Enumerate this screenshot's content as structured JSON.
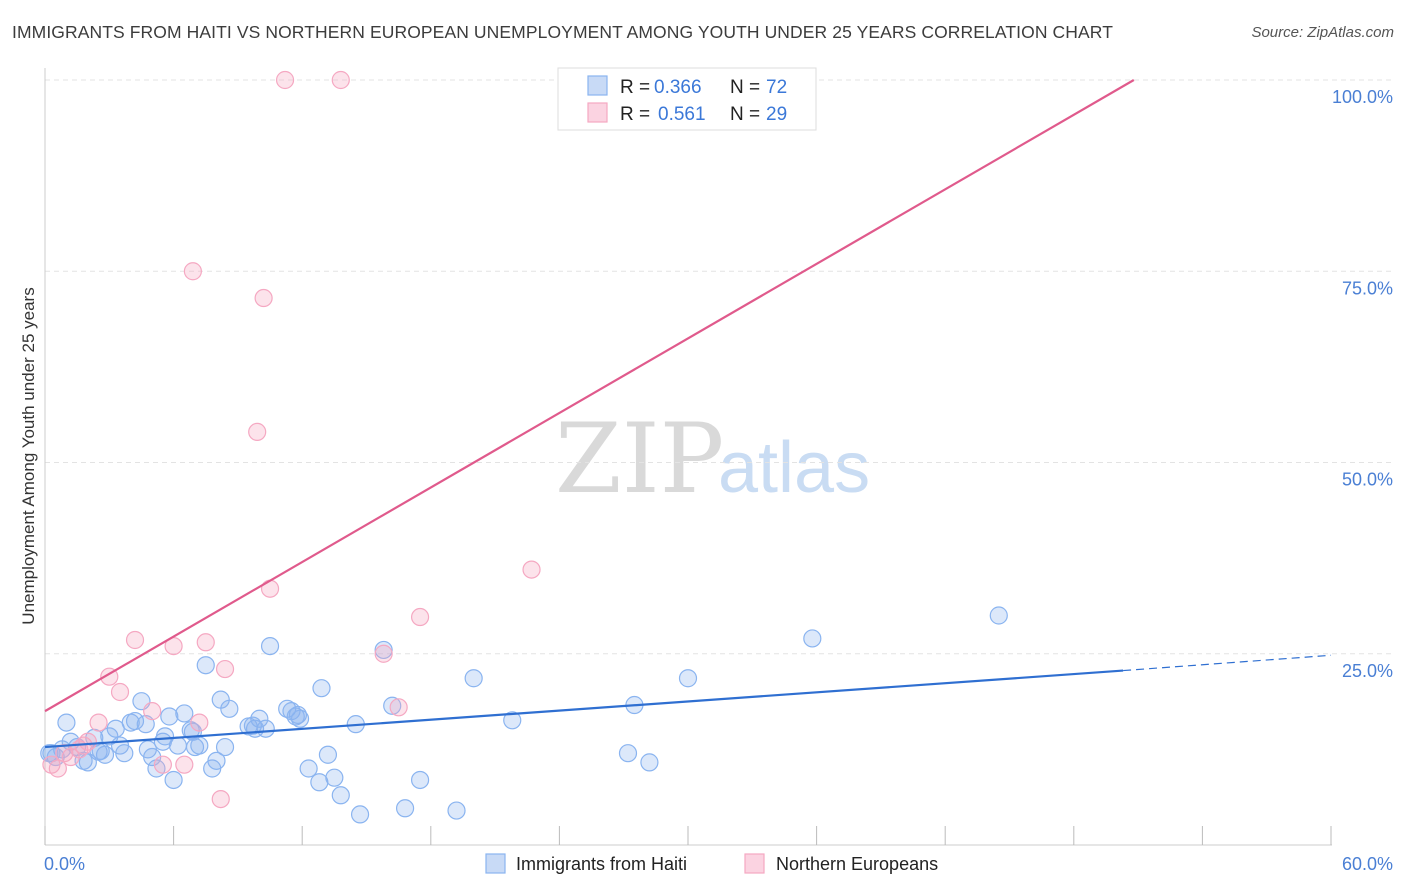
{
  "title": "IMMIGRANTS FROM HAITI VS NORTHERN EUROPEAN UNEMPLOYMENT AMONG YOUTH UNDER 25 YEARS CORRELATION CHART",
  "source": "Source: ZipAtlas.com",
  "watermark": {
    "zip": "ZIP",
    "atlas": "atlas"
  },
  "legend": {
    "r_label": "R =",
    "n_label": "N =",
    "series": [
      {
        "r": "0.366",
        "n": "72"
      },
      {
        "r": "0.561",
        "n": "29"
      }
    ]
  },
  "chart_data": {
    "type": "scatter",
    "title": "IMMIGRANTS FROM HAITI VS NORTHERN EUROPEAN UNEMPLOYMENT AMONG YOUTH UNDER 25 YEARS CORRELATION CHART",
    "xlabel": "",
    "ylabel": "Unemployment Among Youth under 25 years",
    "xlim": [
      0,
      60
    ],
    "ylim": [
      0,
      100
    ],
    "x_tick_labels": [
      "0.0%",
      "60.0%"
    ],
    "y_ticks": [
      {
        "value": 25,
        "label": "25.0%"
      },
      {
        "value": 50,
        "label": "50.0%"
      },
      {
        "value": 75,
        "label": "75.0%"
      },
      {
        "value": 100,
        "label": "100.0%"
      }
    ],
    "series": [
      {
        "name": "Immigrants from Haiti",
        "color": "#8ab4f0",
        "line_color": "#2f6fd1",
        "trend": {
          "x0": 0,
          "y0": 12.8,
          "x1": 50.3,
          "y1": 22.8,
          "dash_to_x": 60,
          "dash_to_y": 24.8
        },
        "points": [
          [
            0.2,
            12.0
          ],
          [
            0.5,
            11.5
          ],
          [
            0.8,
            12.5
          ],
          [
            1.0,
            16.0
          ],
          [
            1.2,
            13.5
          ],
          [
            1.5,
            12.8
          ],
          [
            1.8,
            11.0
          ],
          [
            2.0,
            10.8
          ],
          [
            2.3,
            14.0
          ],
          [
            2.5,
            12.2
          ],
          [
            2.8,
            11.8
          ],
          [
            3.0,
            14.2
          ],
          [
            3.3,
            15.2
          ],
          [
            3.5,
            13.0
          ],
          [
            3.7,
            12.0
          ],
          [
            4.0,
            16.0
          ],
          [
            4.2,
            16.2
          ],
          [
            4.5,
            18.8
          ],
          [
            4.7,
            15.8
          ],
          [
            4.8,
            12.5
          ],
          [
            5.0,
            11.5
          ],
          [
            5.2,
            10.0
          ],
          [
            5.5,
            13.5
          ],
          [
            5.6,
            14.2
          ],
          [
            5.8,
            16.8
          ],
          [
            6.0,
            8.5
          ],
          [
            6.2,
            13.0
          ],
          [
            6.5,
            17.2
          ],
          [
            6.8,
            15.0
          ],
          [
            7.0,
            12.8
          ],
          [
            7.2,
            13.0
          ],
          [
            7.5,
            23.5
          ],
          [
            7.8,
            10.0
          ],
          [
            8.0,
            11.0
          ],
          [
            8.2,
            19.0
          ],
          [
            8.4,
            12.8
          ],
          [
            8.6,
            17.8
          ],
          [
            9.5,
            15.5
          ],
          [
            9.8,
            15.2
          ],
          [
            10.0,
            16.5
          ],
          [
            10.3,
            15.2
          ],
          [
            10.5,
            26.0
          ],
          [
            11.3,
            17.8
          ],
          [
            11.5,
            17.5
          ],
          [
            11.7,
            16.8
          ],
          [
            11.8,
            17.0
          ],
          [
            11.9,
            16.5
          ],
          [
            12.3,
            10.0
          ],
          [
            12.8,
            8.2
          ],
          [
            12.9,
            20.5
          ],
          [
            13.2,
            11.8
          ],
          [
            13.5,
            8.8
          ],
          [
            13.8,
            6.5
          ],
          [
            14.5,
            15.8
          ],
          [
            14.7,
            4.0
          ],
          [
            15.8,
            25.5
          ],
          [
            16.2,
            18.2
          ],
          [
            16.8,
            4.8
          ],
          [
            17.5,
            8.5
          ],
          [
            19.2,
            4.5
          ],
          [
            20.0,
            21.8
          ],
          [
            21.8,
            16.3
          ],
          [
            27.2,
            12.0
          ],
          [
            27.5,
            18.3
          ],
          [
            28.2,
            10.8
          ],
          [
            30.0,
            21.8
          ],
          [
            35.8,
            27.0
          ],
          [
            44.5,
            30.0
          ],
          [
            0.3,
            12.0
          ],
          [
            2.6,
            12.3
          ],
          [
            6.9,
            14.8
          ],
          [
            9.7,
            15.6
          ]
        ]
      },
      {
        "name": "Northern Europeans",
        "color": "#f5a8c2",
        "line_color": "#e05a8c",
        "trend": {
          "x0": 0,
          "y0": 17.5,
          "x1": 50.8,
          "y1": 100
        },
        "points": [
          [
            0.3,
            10.5
          ],
          [
            0.6,
            10.0
          ],
          [
            0.9,
            12.0
          ],
          [
            1.2,
            11.5
          ],
          [
            1.6,
            12.5
          ],
          [
            1.8,
            13.0
          ],
          [
            2.0,
            13.5
          ],
          [
            2.5,
            16.0
          ],
          [
            3.0,
            22.0
          ],
          [
            3.5,
            20.0
          ],
          [
            4.2,
            26.8
          ],
          [
            5.0,
            17.5
          ],
          [
            5.5,
            10.5
          ],
          [
            6.0,
            26.0
          ],
          [
            6.5,
            10.5
          ],
          [
            6.9,
            75.0
          ],
          [
            7.2,
            16.0
          ],
          [
            7.5,
            26.5
          ],
          [
            8.2,
            6.0
          ],
          [
            8.4,
            23.0
          ],
          [
            9.9,
            54.0
          ],
          [
            10.2,
            71.5
          ],
          [
            10.5,
            33.5
          ],
          [
            11.2,
            100.0
          ],
          [
            13.8,
            100.0
          ],
          [
            15.8,
            25.0
          ],
          [
            16.5,
            18.0
          ],
          [
            17.5,
            29.8
          ],
          [
            22.7,
            36.0
          ]
        ]
      }
    ]
  }
}
